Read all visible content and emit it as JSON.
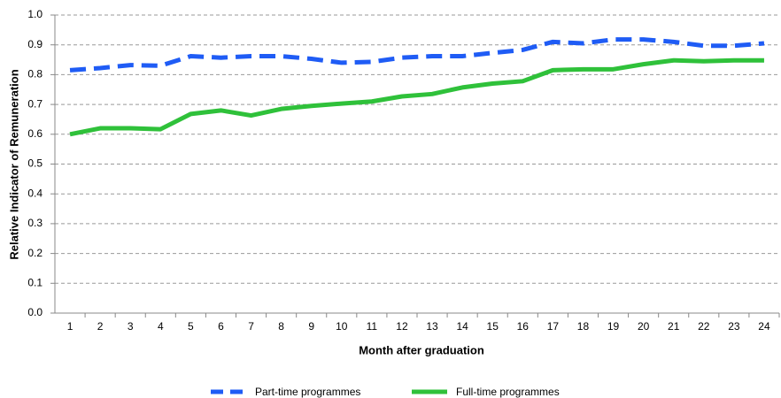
{
  "chart_data": {
    "type": "line",
    "xlabel": "Month after graduation",
    "ylabel": "Relative Indicator of Remuneration",
    "categories": [
      "1",
      "2",
      "3",
      "4",
      "5",
      "6",
      "7",
      "8",
      "9",
      "10",
      "11",
      "12",
      "13",
      "14",
      "15",
      "16",
      "17",
      "18",
      "19",
      "20",
      "21",
      "22",
      "23",
      "24"
    ],
    "series": [
      {
        "name": "Part-time programmes",
        "color": "#1f5cf5",
        "dashed": true,
        "values": [
          0.815,
          0.822,
          0.832,
          0.83,
          0.862,
          0.857,
          0.862,
          0.862,
          0.853,
          0.84,
          0.843,
          0.857,
          0.862,
          0.862,
          0.873,
          0.883,
          0.91,
          0.905,
          0.918,
          0.918,
          0.91,
          0.897,
          0.897,
          0.905
        ]
      },
      {
        "name": "Full-time  programmes",
        "color": "#2fc13a",
        "dashed": false,
        "values": [
          0.6,
          0.62,
          0.62,
          0.617,
          0.668,
          0.68,
          0.663,
          0.685,
          0.695,
          0.703,
          0.71,
          0.727,
          0.735,
          0.757,
          0.77,
          0.778,
          0.815,
          0.818,
          0.818,
          0.835,
          0.848,
          0.845,
          0.848,
          0.848
        ]
      }
    ],
    "ylim": [
      0,
      1
    ],
    "yticks": [
      {
        "value": 0,
        "label": "0.0"
      },
      0.1,
      0.2,
      0.3,
      0.4,
      0.5,
      0.6,
      0.7,
      0.8,
      0.9,
      {
        "value": 1,
        "label": "1.0"
      }
    ],
    "grid": true,
    "legend": "bottom"
  }
}
